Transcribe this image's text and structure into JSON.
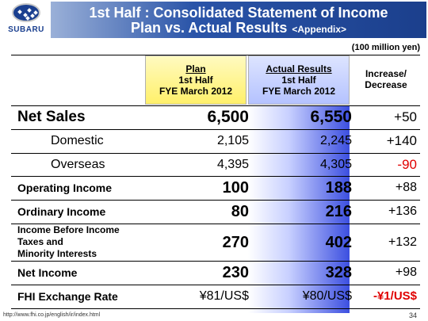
{
  "header": {
    "brand": "SUBARU",
    "title_line1": "1st Half : Consolidated Statement of Income",
    "title_line2": "Plan vs. Actual Results",
    "title_appendix": "<Appendix>"
  },
  "unit_note": "(100 million yen)",
  "columns": {
    "plan": {
      "title": "Plan",
      "line2": "1st Half",
      "line3": "FYE March 2012"
    },
    "actual": {
      "title": "Actual Results",
      "line2": "1st Half",
      "line3": "FYE March 2012"
    },
    "change": {
      "line1": "Increase/",
      "line2": "Decrease"
    }
  },
  "rows": [
    {
      "label": "Net Sales",
      "plan": "6,500",
      "actual": "6,550",
      "change": "+50"
    },
    {
      "label": "Domestic",
      "plan": "2,105",
      "actual": "2,245",
      "change": "+140"
    },
    {
      "label": "Overseas",
      "plan": "4,395",
      "actual": "4,305",
      "change": "-90"
    },
    {
      "label": "Operating Income",
      "plan": "100",
      "actual": "188",
      "change": "+88"
    },
    {
      "label": "Ordinary Income",
      "plan": "80",
      "actual": "216",
      "change": "+136"
    },
    {
      "label_line1": "Income Before Income",
      "label_line2": "Taxes and",
      "label_line3": "Minority Interests",
      "plan": "270",
      "actual": "402",
      "change": "+132"
    },
    {
      "label": "Net Income",
      "plan": "230",
      "actual": "328",
      "change": "+98"
    },
    {
      "label": "FHI Exchange Rate",
      "plan": "¥81/US$",
      "actual": "¥80/US$",
      "change": "-¥1/US$"
    }
  ],
  "footer": {
    "url": "http://www.fhi.co.jp/english/ir/index.html",
    "page": "34"
  },
  "colors": {
    "banner": "#1b3f8c",
    "negative": "#e00000",
    "plan_fill": "#fff06a",
    "actual_fill": "#3c4fe0"
  }
}
